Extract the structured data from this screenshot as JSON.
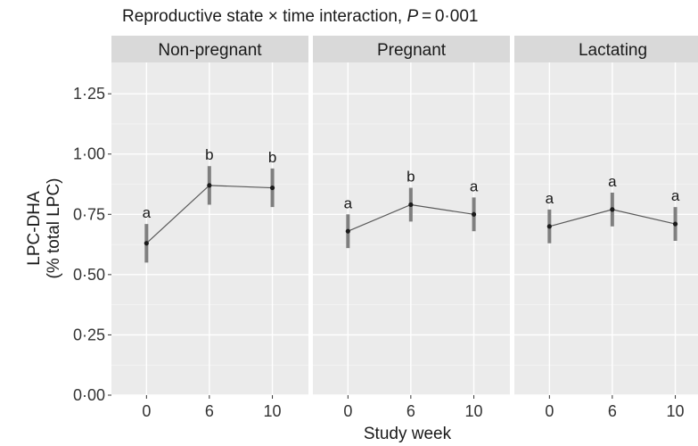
{
  "chart_data": {
    "type": "line",
    "title": {
      "prefix": "Reproductive state × time interaction, ",
      "stat": "P",
      "suffix": " = 0·001"
    },
    "xlabel": "Study week",
    "ylabel_lines": [
      "LPC-DHA",
      "(% total LPC)"
    ],
    "ylim": [
      0,
      1.38
    ],
    "y_ticks": [
      {
        "value": 0,
        "label": "0·00"
      },
      {
        "value": 0.25,
        "label": "0·25"
      },
      {
        "value": 0.5,
        "label": "0·50"
      },
      {
        "value": 0.75,
        "label": "0·75"
      },
      {
        "value": 1.0,
        "label": "1·00"
      },
      {
        "value": 1.25,
        "label": "1·25"
      }
    ],
    "x_categories": [
      "0",
      "6",
      "10"
    ],
    "grid": true,
    "colors": {
      "panel_bg": "#ebebeb",
      "strip_bg": "#d9d9d9",
      "grid_major": "#ffffff",
      "line": "#595959",
      "errorbar": "#7f7f7f",
      "point": "#1a1a1a"
    },
    "panels": [
      {
        "name": "Non-pregnant",
        "points": [
          {
            "x": "0",
            "y": 0.63,
            "lower": 0.55,
            "upper": 0.71,
            "letter": "a"
          },
          {
            "x": "6",
            "y": 0.87,
            "lower": 0.79,
            "upper": 0.95,
            "letter": "b"
          },
          {
            "x": "10",
            "y": 0.86,
            "lower": 0.78,
            "upper": 0.94,
            "letter": "b"
          }
        ]
      },
      {
        "name": "Pregnant",
        "points": [
          {
            "x": "0",
            "y": 0.68,
            "lower": 0.61,
            "upper": 0.75,
            "letter": "a"
          },
          {
            "x": "6",
            "y": 0.79,
            "lower": 0.72,
            "upper": 0.86,
            "letter": "b"
          },
          {
            "x": "10",
            "y": 0.75,
            "lower": 0.68,
            "upper": 0.82,
            "letter": "a"
          }
        ]
      },
      {
        "name": "Lactating",
        "points": [
          {
            "x": "0",
            "y": 0.7,
            "lower": 0.63,
            "upper": 0.77,
            "letter": "a"
          },
          {
            "x": "6",
            "y": 0.77,
            "lower": 0.7,
            "upper": 0.84,
            "letter": "a"
          },
          {
            "x": "10",
            "y": 0.71,
            "lower": 0.64,
            "upper": 0.78,
            "letter": "a"
          }
        ]
      }
    ]
  }
}
